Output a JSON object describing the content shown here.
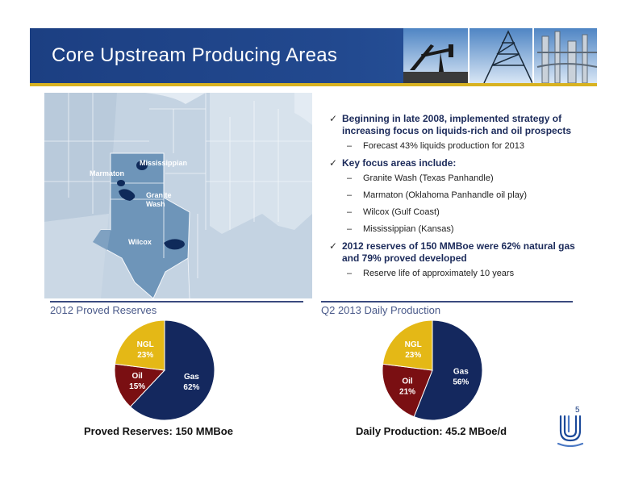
{
  "slide": {
    "title": "Core Upstream Producing Areas",
    "page_number": "5"
  },
  "map": {
    "labels": {
      "mississippian": "Mississippian",
      "marmaton": "Marmaton",
      "granite_wash": [
        "Granite",
        "Wash"
      ],
      "wilcox": "Wilcox"
    }
  },
  "bullets": [
    {
      "text": "Beginning in late 2008, implemented strategy of increasing focus on liquids-rich and oil prospects",
      "subs": [
        "Forecast 43% liquids production for 2013"
      ]
    },
    {
      "text": "Key focus areas include:",
      "subs": [
        "Granite Wash (Texas Panhandle)",
        "Marmaton (Oklahoma Panhandle oil play)",
        "Wilcox (Gulf Coast)",
        "Mississippian (Kansas)"
      ]
    },
    {
      "text": "2012 reserves of 150 MMBoe were 62% natural gas and 79% proved developed",
      "subs": [
        "Reserve life of approximately 10 years"
      ]
    }
  ],
  "chart_data": [
    {
      "type": "pie",
      "title": "2012 Proved Reserves",
      "caption": "Proved Reserves: 150 MMBoe",
      "slices": [
        {
          "label": "Gas",
          "value": 62,
          "text": "62%",
          "color": "#14285e"
        },
        {
          "label": "Oil",
          "value": 15,
          "text": "15%",
          "color": "#7a0f12"
        },
        {
          "label": "NGL",
          "value": 23,
          "text": "23%",
          "color": "#e4b816"
        }
      ]
    },
    {
      "type": "pie",
      "title": "Q2 2013 Daily Production",
      "caption": "Daily Production: 45.2 MBoe/d",
      "slices": [
        {
          "label": "Gas",
          "value": 56,
          "text": "56%",
          "color": "#14285e"
        },
        {
          "label": "Oil",
          "value": 21,
          "text": "21%",
          "color": "#7a0f12"
        },
        {
          "label": "NGL",
          "value": 23,
          "text": "23%",
          "color": "#e4b816"
        }
      ]
    }
  ],
  "colors": {
    "header": "#1f4488",
    "accent_rule": "#d8b221",
    "text_dark": "#1b2a5a"
  }
}
